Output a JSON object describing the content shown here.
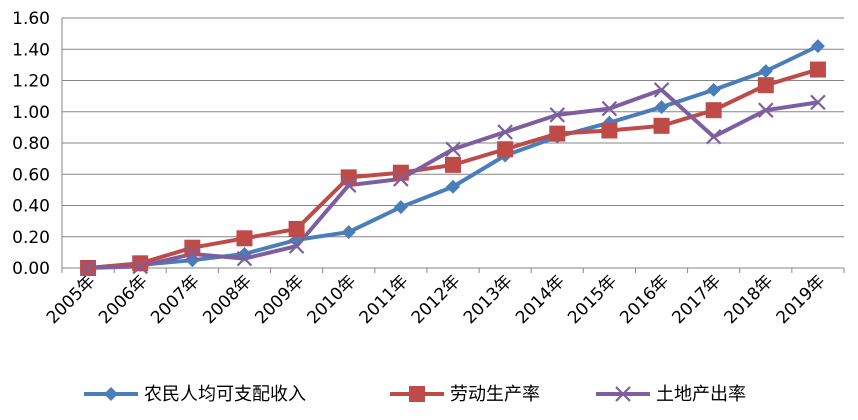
{
  "chart_data": {
    "type": "line",
    "title": "",
    "xlabel": "",
    "ylabel": "",
    "categories": [
      "2005年",
      "2006年",
      "2007年",
      "2008年",
      "2009年",
      "2010年",
      "2011年",
      "2012年",
      "2013年",
      "2014年",
      "2015年",
      "2016年",
      "2017年",
      "2018年",
      "2019年"
    ],
    "ylim": [
      0,
      1.6
    ],
    "yticks": [
      "0.00",
      "0.20",
      "0.40",
      "0.60",
      "0.80",
      "1.00",
      "1.20",
      "1.40",
      "1.60"
    ],
    "grid": true,
    "legend_position": "bottom",
    "series": [
      {
        "name": "农民人均可支配收入",
        "color": "#4a7ebb",
        "marker": "diamond",
        "values": [
          0.0,
          0.02,
          0.05,
          0.09,
          0.18,
          0.23,
          0.39,
          0.52,
          0.72,
          0.84,
          0.93,
          1.03,
          1.14,
          1.26,
          1.42
        ]
      },
      {
        "name": "劳动生产率",
        "color": "#be4b48",
        "marker": "square",
        "values": [
          0.0,
          0.03,
          0.13,
          0.19,
          0.25,
          0.58,
          0.61,
          0.66,
          0.76,
          0.86,
          0.88,
          0.91,
          1.01,
          1.17,
          1.27
        ]
      },
      {
        "name": "土地产出率",
        "color": "#7d5fa0",
        "marker": "x",
        "values": [
          0.0,
          0.01,
          0.09,
          0.06,
          0.14,
          0.53,
          0.57,
          0.76,
          0.87,
          0.98,
          1.02,
          1.14,
          0.84,
          1.01,
          1.06
        ]
      }
    ]
  }
}
